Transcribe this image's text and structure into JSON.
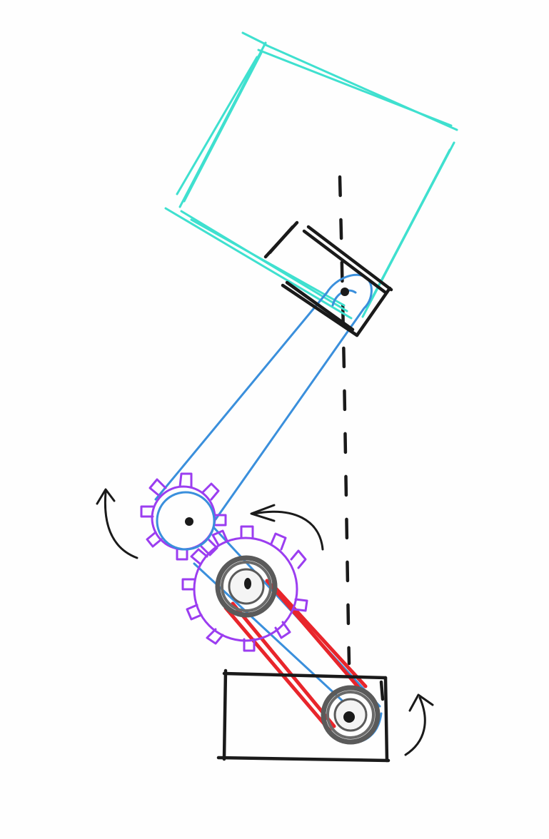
{
  "colors": {
    "background": "#fefefe",
    "payload": "#3fe0cf",
    "arm": "#3a8fdc",
    "gear": "#9b3df0",
    "belt": "#e8252b",
    "pulley": "#5a5a5a",
    "ink": "#1a1a1a"
  },
  "diagram": {
    "parts": [
      "payload-box",
      "wrist-bracket",
      "upper-arm-link",
      "elbow-gear",
      "drive-gear",
      "drive-pulley",
      "base-pulley",
      "drive-belt",
      "base-block",
      "vertical-reference-line",
      "rotation-arrows"
    ]
  }
}
